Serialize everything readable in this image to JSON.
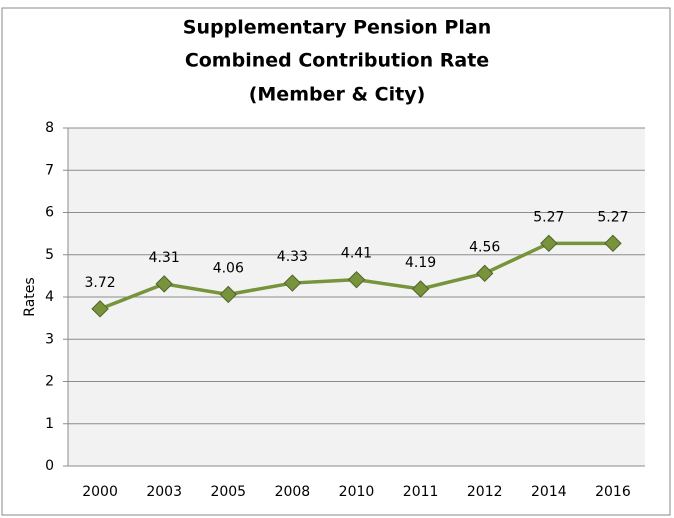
{
  "chart_data": {
    "type": "line",
    "title": [
      "Supplementary Pension Plan",
      "Combined Contribution Rate",
      "(Member & City)"
    ],
    "y_label": "Rates",
    "categories": [
      "2000",
      "2003",
      "2005",
      "2008",
      "2010",
      "2011",
      "2012",
      "2014",
      "2016"
    ],
    "series": [
      {
        "name": "Combined Contribution Rate",
        "color": "#77933c",
        "values": [
          3.72,
          4.31,
          4.06,
          4.33,
          4.41,
          4.19,
          4.56,
          5.27,
          5.27
        ]
      }
    ],
    "ylim": [
      0,
      8
    ],
    "yticks": [
      0,
      1,
      2,
      3,
      4,
      5,
      6,
      7,
      8
    ],
    "grid": true
  }
}
